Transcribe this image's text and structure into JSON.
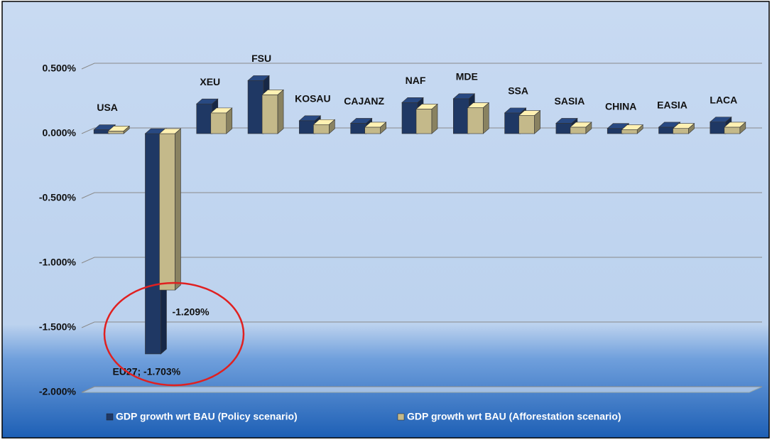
{
  "chart_data": {
    "type": "bar3d",
    "categories": [
      "USA",
      null,
      "XEU",
      "FSU",
      "KOSAU",
      "CAJANZ",
      "NAF",
      "MDE",
      "SSA",
      "SASIA",
      "CHINA",
      "EASIA",
      "LACA"
    ],
    "series": [
      {
        "name": "GDP growth wrt BAU (Policy scenario)",
        "color": "#1f3864",
        "values": [
          0.03,
          -1.703,
          0.23,
          0.41,
          0.1,
          0.08,
          0.24,
          0.27,
          0.16,
          0.08,
          0.04,
          0.05,
          0.09
        ],
        "value_labels": [
          null,
          "EU27; -1.703%",
          null,
          null,
          null,
          null,
          null,
          null,
          null,
          null,
          null,
          null,
          null
        ]
      },
      {
        "name": "GDP growth wrt BAU (Afforestation scenario)",
        "color": "#c4b98a",
        "values": [
          0.02,
          -1.209,
          0.16,
          0.3,
          0.07,
          0.05,
          0.19,
          0.2,
          0.14,
          0.05,
          0.03,
          0.04,
          0.05
        ],
        "value_labels": [
          null,
          "-1.209%",
          null,
          null,
          null,
          null,
          null,
          null,
          null,
          null,
          null,
          null,
          null
        ]
      }
    ],
    "ylim": [
      -2,
      0.5
    ],
    "yticks": [
      {
        "value": 0.5,
        "label": "0.500%"
      },
      {
        "value": 0,
        "label": "0.000%"
      },
      {
        "value": -0.5,
        "label": "-0.500%"
      },
      {
        "value": -1,
        "label": "-1.000%"
      },
      {
        "value": -1.5,
        "label": "-1.500%"
      },
      {
        "value": -2,
        "label": "-2.000%"
      }
    ],
    "grid": true,
    "legend": "bottom"
  }
}
